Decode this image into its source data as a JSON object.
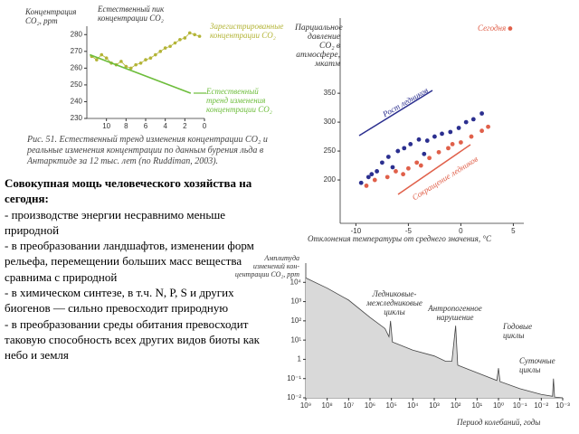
{
  "chart_data": [
    {
      "type": "line",
      "y_label": "Концентрация CO₂, ppm",
      "annotations": [
        "Естественный пик концентрации CO₂"
      ],
      "xlim": [
        12,
        0
      ],
      "xticks": [
        10,
        8,
        6,
        4,
        2,
        0
      ],
      "ylim": [
        230,
        285
      ],
      "yticks": [
        230,
        240,
        250,
        260,
        270,
        280
      ],
      "series": [
        {
          "name": "Зарегистрированные концентрации CO₂",
          "color": "#b3b436",
          "markers": true,
          "x": [
            11.5,
            11,
            10.5,
            10,
            9.5,
            9,
            8.5,
            8,
            7.5,
            7,
            6.5,
            6,
            5.5,
            5,
            4.5,
            4,
            3.5,
            3,
            2.5,
            2,
            1.5,
            1,
            0.5
          ],
          "values": [
            267,
            265,
            268,
            266,
            263,
            262,
            264,
            261,
            260,
            262,
            263,
            265,
            266,
            268,
            270,
            272,
            273,
            275,
            277,
            278,
            281,
            280,
            279
          ]
        },
        {
          "name": "Естественный тренд изменения концентрации CO₂",
          "color": "#6dbd3b",
          "markers": false,
          "x": [
            11.7,
            1.4
          ],
          "values": [
            268,
            245
          ]
        }
      ]
    },
    {
      "type": "scatter",
      "y_label": "Парциальное давление CO₂ в атмосфере, мкатм",
      "x_label": "Отклонения температуры от среднего значения, °C",
      "xlim": [
        -11.5,
        6
      ],
      "xticks": [
        -10,
        -5,
        0,
        5
      ],
      "ylim": [
        125,
        480
      ],
      "yticks": [
        200,
        250,
        300,
        350
      ],
      "series": [
        {
          "name": "Рост ледников",
          "color": "#2b2f8f",
          "x": [
            -9.5,
            -8.8,
            -8,
            -7.5,
            -6.9,
            -6,
            -5.4,
            -4.8,
            -4,
            -3.2,
            -2.5,
            -1.8,
            -1,
            -0.2,
            0.5,
            1.2,
            2,
            -6.5,
            -3.5,
            -8.5
          ],
          "values": [
            195,
            205,
            215,
            230,
            240,
            250,
            255,
            262,
            270,
            268,
            275,
            280,
            283,
            290,
            300,
            305,
            315,
            222,
            245,
            210
          ]
        },
        {
          "name": "Сокращение ледников",
          "color": "#e0604a",
          "x": [
            -9,
            -8.2,
            -7,
            -6.2,
            -5,
            -4.2,
            -3,
            -2.1,
            -1.2,
            0,
            1,
            2,
            2.6,
            -5.5,
            -3.8,
            -0.8
          ],
          "values": [
            190,
            200,
            205,
            215,
            220,
            230,
            238,
            248,
            255,
            265,
            275,
            285,
            292,
            210,
            225,
            262
          ]
        },
        {
          "name": "Сегодня",
          "color": "#e0604a",
          "x": [
            4.7
          ],
          "values": [
            462
          ]
        }
      ]
    },
    {
      "type": "area",
      "y_label": "Амплитуда изменений кон-центрации CO₂, ppm",
      "x_label": "Период колебаний, годы",
      "annotations": [
        "Ледниковые-межледниковые циклы",
        "Антропогенное нарушение",
        "Годовые циклы",
        "Суточные циклы"
      ],
      "log_x": true,
      "log_y": true,
      "color": "#d9d9d9",
      "line_color": "#444444",
      "xlim": [
        1000000000,
        0.001
      ],
      "xticks": [
        {
          "value": 1000000000,
          "label": "10⁹"
        },
        {
          "value": 100000000,
          "label": "10⁸"
        },
        {
          "value": 10000000,
          "label": "10⁷"
        },
        {
          "value": 1000000,
          "label": "10⁶"
        },
        {
          "value": 100000,
          "label": "10⁵"
        },
        {
          "value": 10000,
          "label": "10⁴"
        },
        {
          "value": 1000,
          "label": "10³"
        },
        {
          "value": 100,
          "label": "10²"
        },
        {
          "value": 10,
          "label": "10¹"
        },
        {
          "value": 1,
          "label": "10⁰"
        },
        {
          "value": 0.1,
          "label": "10⁻¹"
        },
        {
          "value": 0.01,
          "label": "10⁻²"
        },
        {
          "value": 0.001,
          "label": "10⁻³"
        }
      ],
      "ylim": [
        0.01,
        100000
      ],
      "yticks": [
        {
          "value": 10000,
          "label": "10⁴"
        },
        {
          "value": 1000,
          "label": "10³"
        },
        {
          "value": 100,
          "label": "10²"
        },
        {
          "value": 10,
          "label": "10¹"
        },
        {
          "value": 1,
          "label": "1"
        },
        {
          "value": 0.1,
          "label": "10⁻¹"
        },
        {
          "value": 0.01,
          "label": "10⁻²"
        }
      ],
      "x": [
        1000000000,
        100000000,
        10000000,
        1000000,
        200000,
        130000,
        110000,
        90000,
        10000,
        1000,
        300,
        150,
        100,
        80,
        10,
        1.2,
        1,
        0.85,
        0.1,
        0.01,
        0.003,
        0.0027,
        0.0024,
        0.001
      ],
      "values": [
        17000,
        5000,
        1200,
        150,
        40,
        15,
        100,
        8,
        3,
        1.5,
        0.8,
        0.8,
        56,
        0.5,
        0.2,
        0.08,
        0.35,
        0.07,
        0.03,
        0.015,
        0.012,
        0.1,
        0.011,
        0.01
      ]
    }
  ],
  "caption": "Рис. 51. Естественный тренд изменения концентрации CO₂ и реальные изменения концентрации по данным бурения льда в Антарктиде за 12 тыс. лет (по Ruddiman, 2003).",
  "text": {
    "heading": "Совокупная мощь человеческого хозяйства на сегодня:",
    "items": [
      "- производстве энергии несравнимо меньше природной",
      "- в преобразовании ландшафтов, изменении форм рельефа, перемещении больших масс вещества сравнима с природной",
      "- в химическом синтезе, в т.ч. N, P, S и других биогенов — сильно превосходит природную",
      "- в преобразовании среды обитания превосходит таковую способность всех других видов биоты как небо и земля"
    ]
  }
}
